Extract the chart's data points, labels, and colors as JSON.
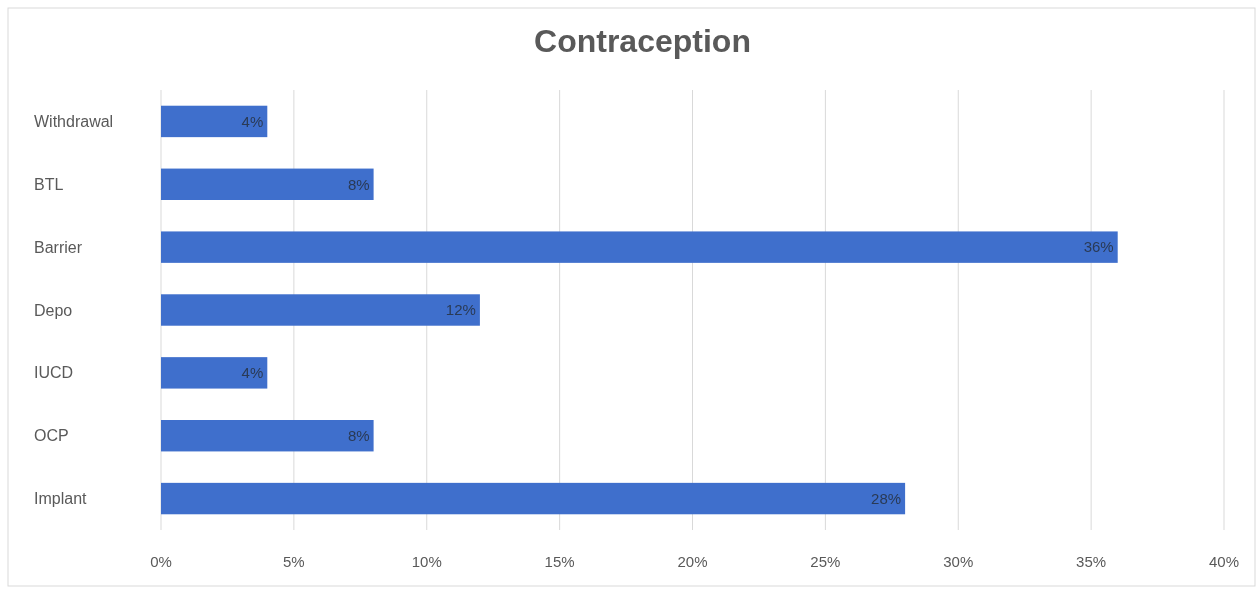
{
  "chart_data": {
    "type": "bar",
    "orientation": "horizontal",
    "title": "Contraception",
    "categories": [
      "Withdrawal",
      "BTL",
      "Barrier",
      "Depo",
      "IUCD",
      "OCP",
      "Implant"
    ],
    "values": [
      4,
      8,
      36,
      12,
      4,
      8,
      28
    ],
    "value_labels": [
      "4%",
      "8%",
      "36%",
      "12%",
      "4%",
      "8%",
      "28%"
    ],
    "color": "#3f6fcc",
    "xlim": [
      0,
      40
    ],
    "xticks": [
      {
        "value": 0,
        "label": "0%"
      },
      {
        "value": 5,
        "label": "5%"
      },
      {
        "value": 10,
        "label": "10%"
      },
      {
        "value": 15,
        "label": "15%"
      },
      {
        "value": 20,
        "label": "20%"
      },
      {
        "value": 25,
        "label": "25%"
      },
      {
        "value": 30,
        "label": "30%"
      },
      {
        "value": 35,
        "label": "35%"
      },
      {
        "value": 40,
        "label": "40%"
      }
    ],
    "grid": "x"
  }
}
